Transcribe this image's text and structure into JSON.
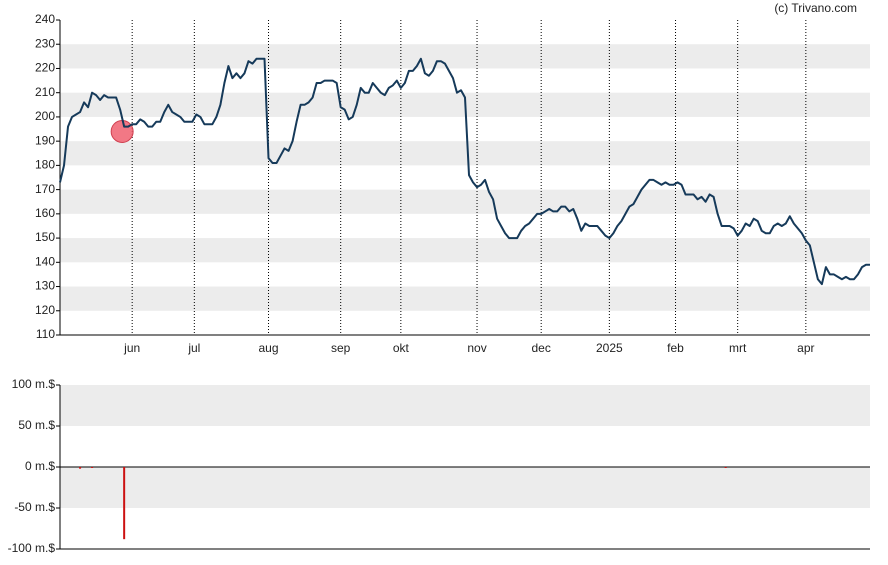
{
  "chart_data": [
    {
      "type": "line",
      "credit": "(c) Trivano.com",
      "x": [
        0,
        1,
        2,
        3,
        4,
        5,
        6,
        7,
        8,
        9,
        10,
        11,
        12,
        13,
        14,
        15,
        16,
        17,
        18,
        19,
        20,
        21,
        22,
        23,
        24,
        25,
        26,
        27,
        28,
        29,
        30,
        31,
        32,
        33,
        34,
        35,
        36,
        37,
        38,
        39,
        40,
        41,
        42,
        43,
        44,
        45,
        46,
        47,
        48,
        49,
        50,
        51,
        52,
        53,
        54,
        55,
        56,
        57,
        58,
        59,
        60,
        61,
        62,
        63,
        64,
        65,
        66,
        67,
        68,
        69,
        70,
        71,
        72,
        73,
        74,
        75,
        76,
        77,
        78,
        79,
        80,
        81,
        82,
        83,
        84,
        85,
        86,
        87,
        88,
        89,
        90,
        91,
        92,
        93,
        94,
        95,
        96,
        97,
        98,
        99,
        100,
        101,
        102,
        103,
        104,
        105,
        106,
        107,
        108,
        109,
        110,
        111,
        112,
        113,
        114,
        115,
        116,
        117,
        118,
        119,
        120,
        121,
        122,
        123,
        124,
        125,
        126,
        127,
        128,
        129,
        130,
        131,
        132,
        133,
        134,
        135,
        136,
        137,
        138,
        139,
        140,
        141,
        142,
        143,
        144,
        145,
        146,
        147,
        148,
        149,
        150,
        151,
        152,
        153,
        154,
        155,
        156,
        157,
        158,
        159,
        160,
        161,
        162,
        163,
        164,
        165,
        166,
        167,
        168,
        169,
        170,
        171,
        172,
        173,
        174,
        175,
        176,
        177,
        178,
        179,
        180,
        181,
        182,
        183,
        184,
        185,
        186,
        187,
        188,
        189,
        190,
        191,
        192,
        193,
        194,
        195,
        196,
        197,
        198,
        199,
        200,
        201,
        202
      ],
      "values": [
        173,
        180,
        196,
        200,
        201,
        202,
        206,
        204,
        210,
        209,
        207,
        209,
        208,
        208,
        208,
        203,
        196,
        196,
        197,
        197,
        199,
        198,
        196,
        196,
        198,
        198,
        202,
        205,
        202,
        201,
        200,
        198,
        198,
        198,
        201,
        200,
        197,
        197,
        197,
        200,
        205,
        214,
        221,
        216,
        218,
        216,
        218,
        223,
        222,
        224,
        224,
        224,
        183,
        181,
        181,
        184,
        187,
        186,
        190,
        198,
        205,
        205,
        206,
        208,
        214,
        214,
        215,
        215,
        215,
        214,
        204,
        203,
        199,
        200,
        205,
        212,
        210,
        210,
        214,
        212,
        210,
        209,
        212,
        213,
        215,
        212,
        214,
        219,
        219,
        221,
        224,
        218,
        217,
        219,
        223,
        223,
        222,
        219,
        216,
        210,
        211,
        208,
        176,
        173,
        171,
        172,
        174,
        169,
        166,
        158,
        155,
        152,
        150,
        150,
        150,
        153,
        155,
        156,
        158,
        160,
        160,
        161,
        162,
        161,
        161,
        163,
        163,
        161,
        162,
        158,
        153,
        156,
        155,
        155,
        155,
        153,
        151,
        150,
        152,
        155,
        157,
        160,
        163,
        164,
        167,
        170,
        172,
        174,
        174,
        173,
        172,
        173,
        172,
        172,
        173,
        172,
        168,
        168,
        168,
        166,
        167,
        165,
        168,
        167,
        160,
        155,
        155,
        155,
        154,
        151,
        153,
        156,
        155,
        158,
        157,
        153,
        152,
        152,
        155,
        156,
        155,
        156,
        159,
        156,
        154,
        152,
        149,
        147,
        140,
        133,
        131,
        138,
        135,
        135,
        134,
        133,
        134,
        133,
        133,
        135,
        138,
        139,
        139
      ],
      "color": "#163a5a",
      "marker": {
        "x": 15.5,
        "value": 194,
        "color": "#f06070"
      },
      "xlim": [
        0,
        202
      ],
      "xticks": [
        {
          "value": 18,
          "label": "jun"
        },
        {
          "value": 33.5,
          "label": "jul"
        },
        {
          "value": 52,
          "label": "aug"
        },
        {
          "value": 70,
          "label": "sep"
        },
        {
          "value": 85,
          "label": "okt"
        },
        {
          "value": 104,
          "label": "nov"
        },
        {
          "value": 120,
          "label": "dec"
        },
        {
          "value": 137,
          "label": "2025"
        },
        {
          "value": 153.5,
          "label": "feb"
        },
        {
          "value": 169,
          "label": "mrt"
        },
        {
          "value": 186,
          "label": "apr"
        }
      ],
      "ylim": [
        110,
        240
      ],
      "yticks": [
        110,
        120,
        130,
        140,
        150,
        160,
        170,
        180,
        190,
        200,
        210,
        220,
        230,
        240
      ],
      "bands": true
    },
    {
      "type": "bar",
      "x": [
        5,
        8,
        16,
        166
      ],
      "values": [
        -2,
        -1,
        -88,
        -1
      ],
      "color": "#cc1111",
      "xlim": [
        0,
        202
      ],
      "ylim": [
        -100,
        100
      ],
      "yticks": [
        {
          "value": -100,
          "label": "-100 m.$"
        },
        {
          "value": -50,
          "label": "-50 m.$"
        },
        {
          "value": 0,
          "label": "0 m.$"
        },
        {
          "value": 50,
          "label": "50 m.$"
        },
        {
          "value": 100,
          "label": "100 m.$"
        }
      ],
      "bands": true
    }
  ]
}
